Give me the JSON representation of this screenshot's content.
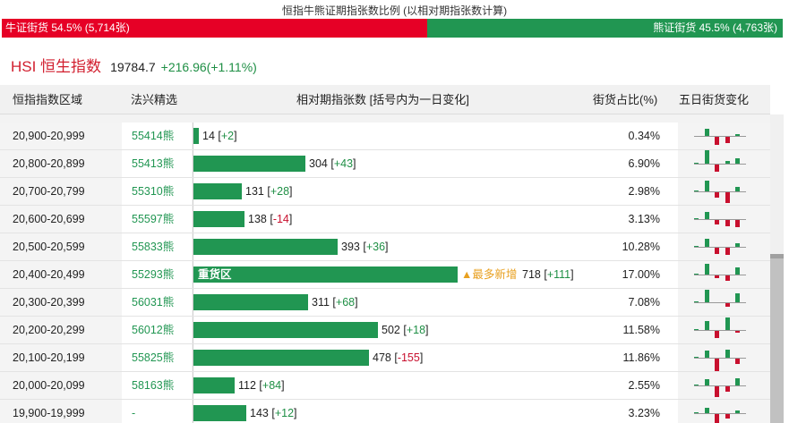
{
  "title": "恒指牛熊证期指张数比例 (以相对期指张数计算)",
  "ratio": {
    "bull_label": "牛证街货 54.5% (5,714张)",
    "bear_label": "熊证街货 45.5% (4,763张)",
    "bull_pct": 54.5,
    "bear_pct": 45.5,
    "bull_color": "#e60026",
    "bear_color": "#219652"
  },
  "index": {
    "name": "HSI 恒生指数",
    "price": "19784.7",
    "change": "+216.96(+1.11%)"
  },
  "table": {
    "headers": {
      "range": "恒指指数区域",
      "pick": "法兴精选",
      "contracts": "相对期指张数 [括号内为一日变化]",
      "share": "街货占比(%)",
      "five_day": "五日街货变化"
    },
    "heavy_label": "重货区",
    "most_new_label": "▲最多新增",
    "rows": [
      {
        "range": "20,900-20,999",
        "code": "55414熊",
        "count": 14,
        "count_text": "14",
        "delta": "+2",
        "share": "0.34%",
        "spark": [
          0,
          8,
          -9,
          -7,
          2
        ]
      },
      {
        "range": "20,800-20,899",
        "code": "55413熊",
        "count": 304,
        "count_text": "304",
        "delta": "+43",
        "share": "6.90%",
        "spark": [
          1,
          15,
          -8,
          3,
          6
        ]
      },
      {
        "range": "20,700-20,799",
        "code": "55310熊",
        "count": 131,
        "count_text": "131",
        "delta": "+28",
        "share": "2.98%",
        "spark": [
          1,
          12,
          -6,
          -12,
          5
        ]
      },
      {
        "range": "20,600-20,699",
        "code": "55597熊",
        "count": 138,
        "count_text": "138",
        "delta": "-14",
        "share": "3.13%",
        "spark": [
          1,
          8,
          -5,
          -7,
          -8
        ]
      },
      {
        "range": "20,500-20,599",
        "code": "55833熊",
        "count": 393,
        "count_text": "393",
        "delta": "+36",
        "share": "10.28%",
        "spark": [
          1,
          9,
          -7,
          -8,
          4
        ]
      },
      {
        "range": "20,400-20,499",
        "code": "55293熊",
        "count": 718,
        "count_text": "718",
        "delta": "+111",
        "share": "17.00%",
        "spark": [
          1,
          12,
          -3,
          -6,
          8
        ],
        "heavy": true,
        "most_new": true
      },
      {
        "range": "20,300-20,399",
        "code": "56031熊",
        "count": 311,
        "count_text": "311",
        "delta": "+68",
        "share": "7.08%",
        "spark": [
          1,
          14,
          0,
          -4,
          10
        ]
      },
      {
        "range": "20,200-20,299",
        "code": "56012熊",
        "count": 502,
        "count_text": "502",
        "delta": "+18",
        "share": "11.58%",
        "spark": [
          1,
          10,
          -8,
          14,
          -2
        ]
      },
      {
        "range": "20,100-20,199",
        "code": "55825熊",
        "count": 478,
        "count_text": "478",
        "delta": "-155",
        "share": "11.86%",
        "spark": [
          1,
          8,
          -14,
          9,
          -6
        ]
      },
      {
        "range": "20,000-20,099",
        "code": "58163熊",
        "count": 112,
        "count_text": "112",
        "delta": "+84",
        "share": "2.55%",
        "spark": [
          1,
          7,
          -12,
          -6,
          8
        ]
      },
      {
        "range": "19,900-19,999",
        "code": "-",
        "count": 143,
        "count_text": "143",
        "delta": "+12",
        "share": "3.23%",
        "spark": [
          1,
          6,
          -10,
          -5,
          3
        ]
      }
    ]
  }
}
